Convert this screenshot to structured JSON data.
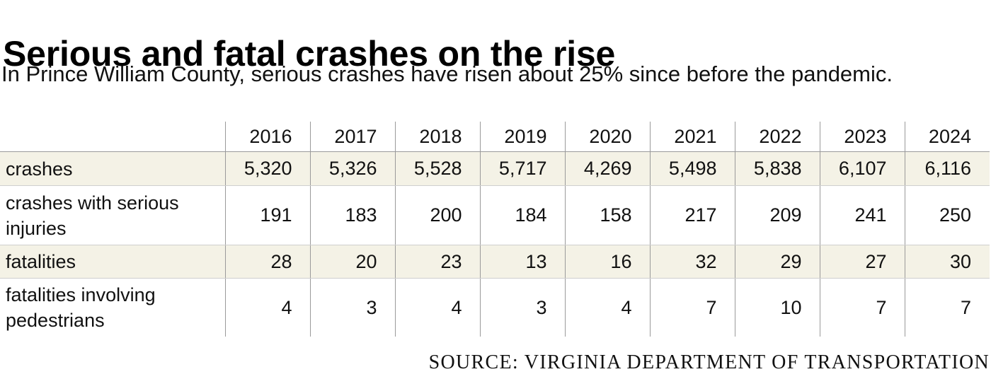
{
  "chart_data": {
    "type": "table",
    "title": "Serious and fatal crashes on the rise",
    "subtitle": "In Prince William County, serious crashes have risen about 25% since before the pandemic.",
    "columns": [
      "2016",
      "2017",
      "2018",
      "2019",
      "2020",
      "2021",
      "2022",
      "2023",
      "2024"
    ],
    "rows": [
      {
        "label": "crashes",
        "shaded": true,
        "values": [
          "5,320",
          "5,326",
          "5,528",
          "5,717",
          "4,269",
          "5,498",
          "5,838",
          "6,107",
          "6,116"
        ]
      },
      {
        "label": "crashes with serious injuries",
        "shaded": false,
        "values": [
          "191",
          "183",
          "200",
          "184",
          "158",
          "217",
          "209",
          "241",
          "250"
        ]
      },
      {
        "label": "fatalities",
        "shaded": true,
        "values": [
          "28",
          "20",
          "23",
          "13",
          "16",
          "32",
          "29",
          "27",
          "30"
        ]
      },
      {
        "label": "fatalities involving pedestrians",
        "shaded": false,
        "values": [
          "4",
          "3",
          "4",
          "3",
          "4",
          "7",
          "10",
          "7",
          "7"
        ]
      }
    ],
    "source": "SOURCE: VIRGINIA DEPARTMENT OF TRANSPORTATION"
  },
  "colors": {
    "row_shade": "#f4f2e6",
    "grid_line": "#9a9a9a",
    "text": "#111111"
  }
}
